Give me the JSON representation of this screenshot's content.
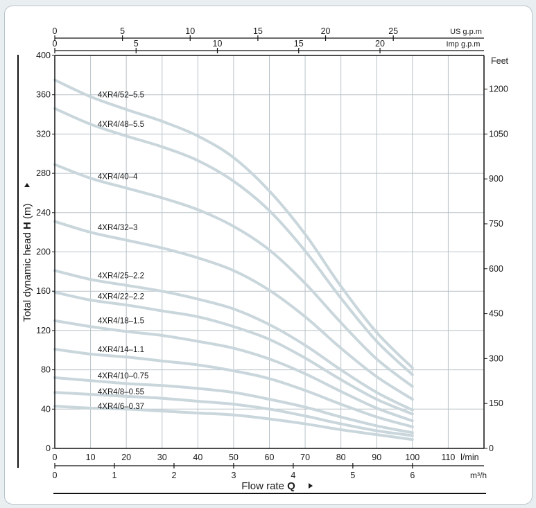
{
  "chart_data": {
    "type": "line",
    "ylabel_prefix": "Total dynamic head ",
    "ylabel_bold": "H",
    "ylabel_suffix": " (m)",
    "xlabel_prefix": "Flow rate ",
    "xlabel_bold": "Q",
    "ylim": [
      0,
      400
    ],
    "xlim": [
      0,
      120
    ],
    "grid": true,
    "y_ticks": [
      0,
      40,
      80,
      120,
      160,
      200,
      240,
      280,
      320,
      360,
      400
    ],
    "x_ticks": [
      0,
      10,
      20,
      30,
      40,
      50,
      60,
      70,
      80,
      90,
      100,
      110
    ],
    "x_unit": "l/min",
    "x2_ticks": [
      0,
      1,
      2,
      3,
      4,
      5,
      6
    ],
    "x2_unit": "m³/h",
    "top1_ticks": [
      0,
      5,
      10,
      15,
      20,
      25
    ],
    "top1_unit": "US g.p.m",
    "top2_ticks": [
      0,
      5,
      10,
      15,
      20
    ],
    "top2_unit": "Imp g.p.m",
    "right_ticks": [
      0,
      150,
      300,
      450,
      600,
      750,
      900,
      1050,
      1200
    ],
    "right_unit": "Feet",
    "series": [
      {
        "name": "4XR4/52–5.5",
        "label_y": 360,
        "x": [
          0,
          10,
          20,
          30,
          40,
          50,
          60,
          70,
          80,
          90,
          100
        ],
        "values": [
          375,
          358,
          345,
          333,
          318,
          296,
          262,
          218,
          165,
          118,
          82
        ]
      },
      {
        "name": "4XR4/48–5.5",
        "label_y": 330,
        "x": [
          0,
          10,
          20,
          30,
          40,
          50,
          60,
          70,
          80,
          90,
          100
        ],
        "values": [
          346,
          330,
          318,
          307,
          293,
          272,
          242,
          201,
          153,
          109,
          75
        ]
      },
      {
        "name": "4XR4/40–4",
        "label_y": 277,
        "x": [
          0,
          10,
          20,
          30,
          40,
          50,
          60,
          70,
          80,
          90,
          100
        ],
        "values": [
          289,
          275,
          265,
          255,
          243,
          226,
          202,
          168,
          128,
          91,
          63
        ]
      },
      {
        "name": "4XR4/32–3",
        "label_y": 225,
        "x": [
          0,
          10,
          20,
          30,
          40,
          50,
          60,
          70,
          80,
          90,
          100
        ],
        "values": [
          231,
          220,
          212,
          204,
          194,
          181,
          161,
          134,
          102,
          73,
          50
        ]
      },
      {
        "name": "4XR4/25–2.2",
        "label_y": 176,
        "x": [
          0,
          10,
          20,
          30,
          40,
          50,
          60,
          70,
          80,
          90,
          100
        ],
        "values": [
          181,
          172,
          166,
          160,
          152,
          142,
          126,
          105,
          80,
          57,
          39
        ]
      },
      {
        "name": "4XR4/22–2.2",
        "label_y": 155,
        "x": [
          0,
          10,
          20,
          30,
          40,
          50,
          60,
          70,
          80,
          90,
          100
        ],
        "values": [
          159,
          151,
          146,
          140,
          134,
          124,
          111,
          92,
          70,
          50,
          35
        ]
      },
      {
        "name": "4XR4/18–1.5",
        "label_y": 130,
        "x": [
          0,
          10,
          20,
          30,
          40,
          50,
          60,
          70,
          80,
          90,
          100
        ],
        "values": [
          130,
          124,
          119,
          115,
          109,
          102,
          91,
          76,
          58,
          41,
          28
        ]
      },
      {
        "name": "4XR4/14–1.1",
        "label_y": 101,
        "x": [
          0,
          10,
          20,
          30,
          40,
          50,
          60,
          70,
          80,
          90,
          100
        ],
        "values": [
          101,
          96,
          93,
          89,
          85,
          79,
          71,
          59,
          45,
          32,
          22
        ]
      },
      {
        "name": "4XR4/10–0.75",
        "label_y": 74,
        "x": [
          0,
          10,
          20,
          30,
          40,
          50,
          60,
          70,
          80,
          90,
          100
        ],
        "values": [
          72,
          69,
          66,
          64,
          61,
          57,
          50,
          42,
          32,
          23,
          16
        ]
      },
      {
        "name": "4XR4/8–0.55",
        "label_y": 58,
        "x": [
          0,
          10,
          20,
          30,
          40,
          50,
          60,
          70,
          80,
          90,
          100
        ],
        "values": [
          57,
          55,
          53,
          51,
          48,
          45,
          40,
          33,
          25,
          18,
          13
        ]
      },
      {
        "name": "4XR4/6–0.37",
        "label_y": 43,
        "x": [
          0,
          10,
          20,
          30,
          40,
          50,
          60,
          70,
          80,
          90,
          100
        ],
        "values": [
          43,
          41,
          40,
          38,
          36,
          34,
          30,
          25,
          19,
          14,
          9
        ]
      }
    ]
  },
  "colors": {
    "curve": "#c9d6dc",
    "grid": "#b8c2c8",
    "axis": "#111111"
  }
}
